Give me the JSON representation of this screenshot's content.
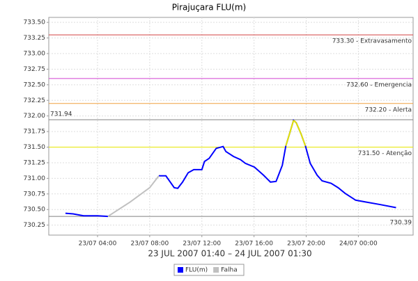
{
  "chart_data": {
    "type": "line",
    "title": "Pirajuçara FLU(m)",
    "xlabel": "23 JUL 2007 01:40 – 24 JUL 2007 01:30",
    "x": [
      1.54,
      2.13,
      2.93,
      4,
      4.8,
      6.5,
      8,
      8.7,
      9.24,
      9.88,
      10.15,
      10.52,
      10.95,
      11.38,
      12,
      12.2,
      12.56,
      13.1,
      13.63,
      13.84,
      14.43,
      14.96,
      15.34,
      16.03,
      16.73,
      17.26,
      17.69,
      18.17,
      18.44,
      18.76,
      19.03,
      19.24,
      19.61,
      19.94,
      20.31,
      20.84,
      21.22,
      21.91,
      22.45,
      22.98,
      23.79,
      24.59,
      25.66,
      26.89
    ],
    "series": [
      {
        "name": "FLU(m)",
        "color": "#0000ff",
        "values": [
          730.44,
          730.43,
          730.4,
          730.4,
          730.39,
          null,
          null,
          731.04,
          731.04,
          730.85,
          730.84,
          730.94,
          731.09,
          731.14,
          731.14,
          731.27,
          731.32,
          731.48,
          731.51,
          731.43,
          731.35,
          731.3,
          731.24,
          731.18,
          731.05,
          730.94,
          730.95,
          731.21,
          731.52,
          731.74,
          731.93,
          731.89,
          731.71,
          731.52,
          731.24,
          731.05,
          730.96,
          730.92,
          730.85,
          730.76,
          730.65,
          730.62,
          730.58,
          730.53
        ]
      },
      {
        "name": "Falha",
        "color": "#c0c0c0",
        "values": [
          null,
          null,
          null,
          null,
          730.39,
          730.62,
          730.85,
          731.04,
          null,
          null,
          null,
          null,
          null,
          null,
          null,
          null,
          null,
          null,
          null,
          null,
          null,
          null,
          null,
          null,
          null,
          null,
          null,
          null,
          null,
          null,
          null,
          null,
          null,
          null,
          null,
          null,
          null,
          null,
          null,
          null,
          null,
          null,
          null,
          null
        ]
      }
    ],
    "highlight": {
      "above": 731.5,
      "color": "#e6e600"
    },
    "xlim": [
      0.26,
      28.2
    ],
    "xticks": [
      {
        "value": 4,
        "label": "23/07 04:00"
      },
      {
        "value": 8,
        "label": "23/07 08:00"
      },
      {
        "value": 12,
        "label": "23/07 12:00"
      },
      {
        "value": 16,
        "label": "23/07 16:00"
      },
      {
        "value": 20,
        "label": "23/07 20:00"
      },
      {
        "value": 24,
        "label": "24/07 00:00"
      }
    ],
    "ylim": [
      730.09,
      733.58
    ],
    "yticks": [
      {
        "value": 730.25,
        "label": "730.25"
      },
      {
        "value": 730.5,
        "label": "730.50"
      },
      {
        "value": 730.75,
        "label": "730.75"
      },
      {
        "value": 731,
        "label": "731.00"
      },
      {
        "value": 731.25,
        "label": "731.25"
      },
      {
        "value": 731.5,
        "label": "731.50"
      },
      {
        "value": 731.75,
        "label": "731.75"
      },
      {
        "value": 732,
        "label": "732.00"
      },
      {
        "value": 732.25,
        "label": "732.25"
      },
      {
        "value": 732.5,
        "label": "732.50"
      },
      {
        "value": 732.75,
        "label": "732.75"
      },
      {
        "value": 733,
        "label": "733.00"
      },
      {
        "value": 733.25,
        "label": "733.25"
      },
      {
        "value": 733.5,
        "label": "733.50"
      }
    ],
    "grid": true,
    "annotations": [
      {
        "value": 733.3,
        "label": "733.30 - Extravasamento",
        "color": "#d04040",
        "side": "right"
      },
      {
        "value": 732.6,
        "label": "732.60 - Emergencia",
        "color": "#d040d0",
        "side": "right"
      },
      {
        "value": 732.2,
        "label": "732.20 - Alerta",
        "color": "#f0a040",
        "side": "right"
      },
      {
        "value": 731.94,
        "label": "731.94",
        "color": "#808080",
        "side": "left"
      },
      {
        "value": 731.5,
        "label": "731.50 - Atenção",
        "color": "#e6e600",
        "side": "right"
      },
      {
        "value": 730.39,
        "label": "730.39",
        "color": "#808080",
        "side": "right"
      }
    ]
  }
}
